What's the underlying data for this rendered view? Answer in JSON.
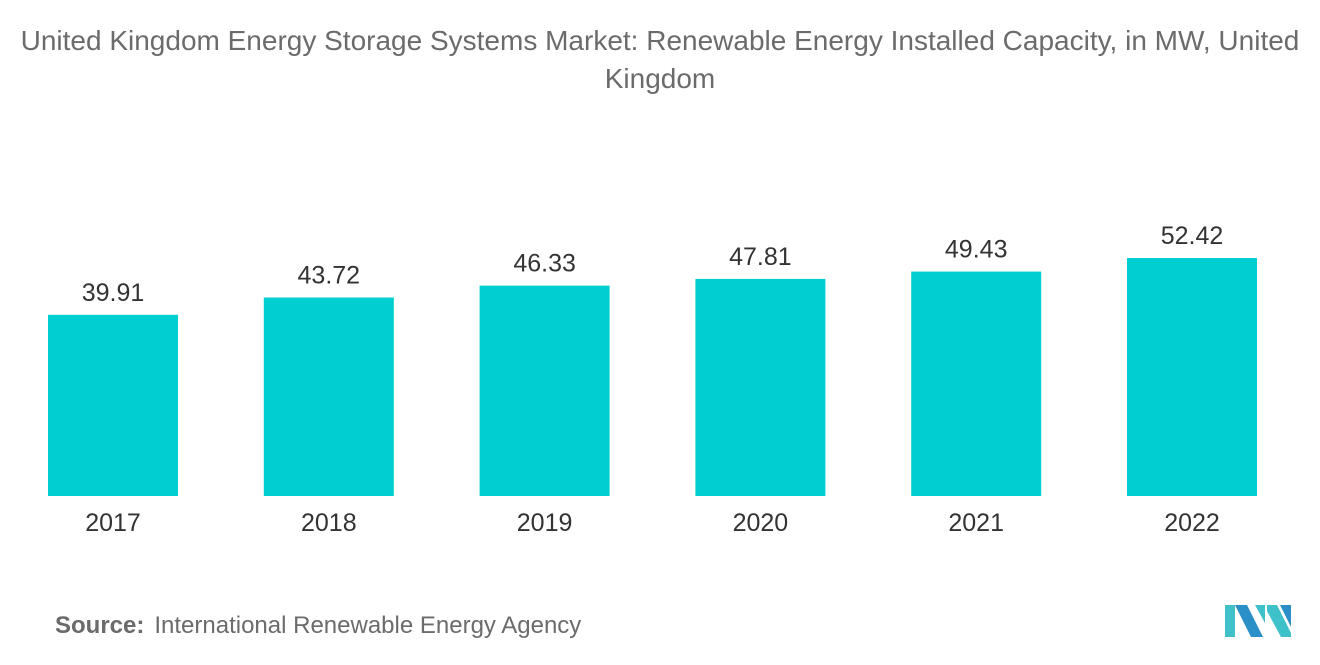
{
  "chart_data": {
    "type": "bar",
    "title": "United Kingdom Energy Storage Systems Market: Renewable Energy Installed Capacity, in MW, United Kingdom",
    "categories": [
      "2017",
      "2018",
      "2019",
      "2020",
      "2021",
      "2022"
    ],
    "values": [
      39.91,
      43.72,
      46.33,
      47.81,
      49.43,
      52.42
    ],
    "value_labels": [
      "39.91",
      "43.72",
      "46.33",
      "47.81",
      "49.43",
      "52.42"
    ],
    "xlabel": "",
    "ylabel": "",
    "ylim": [
      0,
      52.42
    ],
    "grid": false,
    "bar_color": "#00CED1"
  },
  "source": {
    "label": "Source:",
    "text": "International Renewable Energy Agency"
  },
  "logo": {
    "name": "Mordor Intelligence logo"
  }
}
